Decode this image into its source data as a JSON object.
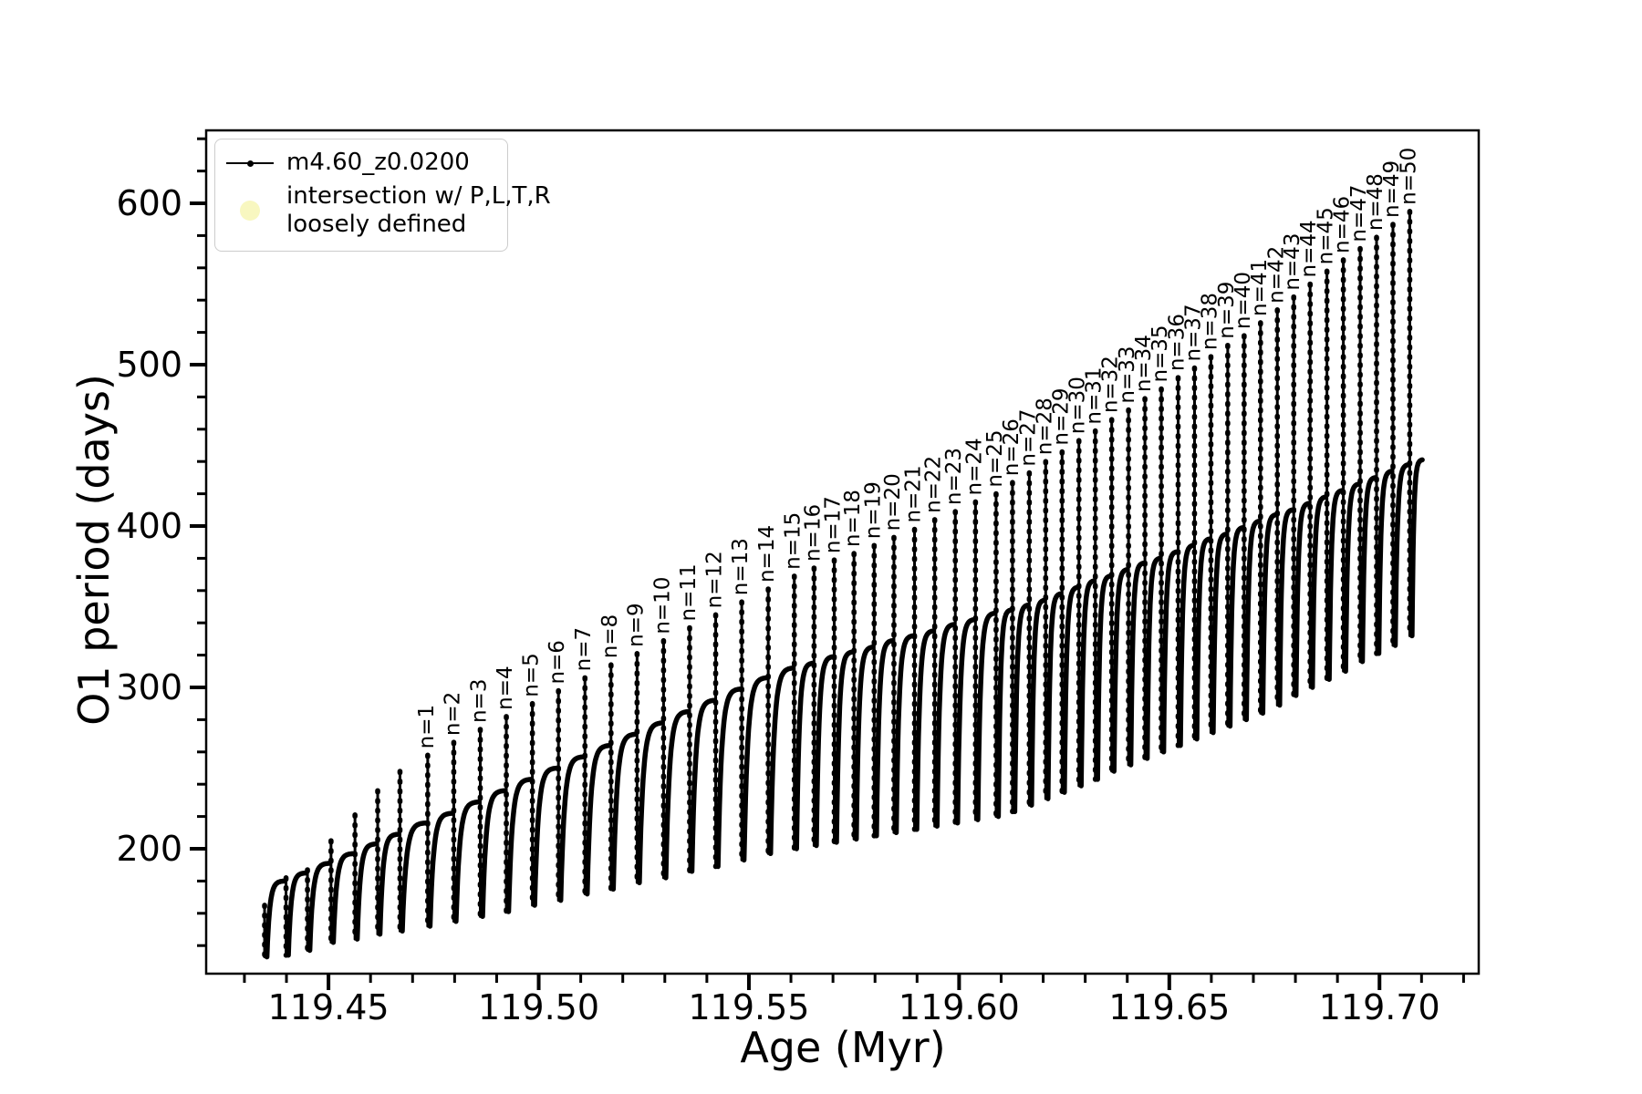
{
  "figure": {
    "background": "#ffffff",
    "line_color": "#000000",
    "intersection_marker_color": "#f8f7c0"
  },
  "legend": {
    "series_label": "m4.60_z0.0200",
    "intersection_label_line1": "intersection w/ P,L,T,R",
    "intersection_label_line2": "loosely defined"
  },
  "chart_data": {
    "type": "line",
    "title": "",
    "xlabel": "Age (Myr)",
    "ylabel": "O1 period (days)",
    "xlim": [
      119.4209,
      119.7236
    ],
    "ylim": [
      122.6,
      645.2
    ],
    "x_major_ticks": [
      119.45,
      119.5,
      119.55,
      119.6,
      119.65,
      119.7
    ],
    "x_tick_labels": [
      "119.45",
      "119.50",
      "119.55",
      "119.60",
      "119.65",
      "119.70"
    ],
    "x_minor_step": 0.01,
    "y_major_ticks": [
      200,
      300,
      400,
      500,
      600
    ],
    "y_tick_labels": [
      "200",
      "300",
      "400",
      "500",
      "600"
    ],
    "y_minor_step": 20,
    "grid": false,
    "legend_position": "upper-left",
    "series": [
      {
        "name": "m4.60_z0.0200",
        "color": "#000000",
        "style": "line with point markers"
      },
      {
        "name": "intersection w/ P,L,T,R loosely defined",
        "color": "#f8f7c0",
        "style": "large circle marker"
      }
    ],
    "sawtooth": {
      "description": "O1 pulsation period vs age: repeating teeth; each tooth rises steeply from a dip, saturates to a rounded top, then a thin vertical spike (tip labeled n=1..n=50) crashes down to the next dip. Arrays are per tooth boundary.",
      "boundary_age": [
        119.4348,
        119.4399,
        119.445,
        119.4506,
        119.4563,
        119.4617,
        119.467,
        119.4736,
        119.4798,
        119.4861,
        119.4923,
        119.4985,
        119.5047,
        119.511,
        119.5172,
        119.5234,
        119.5297,
        119.5359,
        119.5421,
        119.5483,
        119.5546,
        119.5608,
        119.5655,
        119.5703,
        119.575,
        119.5798,
        119.5845,
        119.5894,
        119.5942,
        119.5991,
        119.6039,
        119.6088,
        119.6127,
        119.6167,
        119.6206,
        119.6245,
        119.6285,
        119.6324,
        119.6363,
        119.6403,
        119.6442,
        119.6481,
        119.6521,
        119.656,
        119.6599,
        119.6639,
        119.6678,
        119.6717,
        119.6757,
        119.6796,
        119.6835,
        119.6875,
        119.6914,
        119.6954,
        119.6993,
        119.7032,
        119.7072,
        119.7105
      ],
      "dip_period": [
        133,
        134,
        137,
        142,
        144,
        147,
        149,
        152,
        155,
        158,
        161,
        165,
        168,
        172,
        175,
        179,
        182,
        186,
        189,
        193,
        197,
        200,
        202,
        204,
        206,
        208,
        210,
        212,
        214,
        216,
        218,
        220,
        223,
        227,
        231,
        235,
        239,
        243,
        248,
        252,
        256,
        260,
        264,
        268,
        272,
        276,
        280,
        284,
        289,
        295,
        300,
        305,
        310,
        316,
        321,
        326,
        332,
        337
      ],
      "arc_top_period": [
        172,
        180,
        185,
        191,
        197,
        203,
        209,
        216,
        222,
        229,
        236,
        243,
        250,
        257,
        264,
        271,
        278,
        285,
        292,
        299,
        306,
        312,
        315,
        319,
        322,
        325,
        329,
        332,
        335,
        339,
        342,
        346,
        348,
        351,
        354,
        358,
        362,
        366,
        369,
        373,
        377,
        380,
        384,
        388,
        392,
        395,
        399,
        403,
        407,
        410,
        414,
        418,
        422,
        426,
        430,
        434,
        438,
        441
      ],
      "spike_tip_period": [
        165,
        null,
        null,
        205,
        221,
        236,
        248,
        258,
        266,
        274,
        282,
        290,
        298,
        306,
        314,
        321,
        329,
        337,
        345,
        353,
        361,
        369,
        374,
        379,
        383,
        388,
        393,
        398,
        404,
        409,
        415,
        420,
        427,
        433,
        440,
        446,
        453,
        459,
        466,
        472,
        479,
        485,
        492,
        498,
        505,
        512,
        518,
        526,
        534,
        542,
        550,
        558,
        565,
        572,
        579,
        587,
        595,
        null
      ],
      "spike_label": [
        null,
        null,
        null,
        null,
        null,
        null,
        null,
        "n=1",
        "n=2",
        "n=3",
        "n=4",
        "n=5",
        "n=6",
        "n=7",
        "n=8",
        "n=9",
        "n=10",
        "n=11",
        "n=12",
        "n=13",
        "n=14",
        "n=15",
        "n=16",
        "n=17",
        "n=18",
        "n=19",
        "n=20",
        "n=21",
        "n=22",
        "n=23",
        "n=24",
        "n=25",
        "n=26",
        "n=27",
        "n=28",
        "n=29",
        "n=30",
        "n=31",
        "n=32",
        "n=33",
        "n=34",
        "n=35",
        "n=36",
        "n=37",
        "n=38",
        "n=39",
        "n=40",
        "n=41",
        "n=42",
        "n=43",
        "n=44",
        "n=45",
        "n=46",
        "n=47",
        "n=48",
        "n=49",
        "n=50",
        null
      ]
    }
  }
}
